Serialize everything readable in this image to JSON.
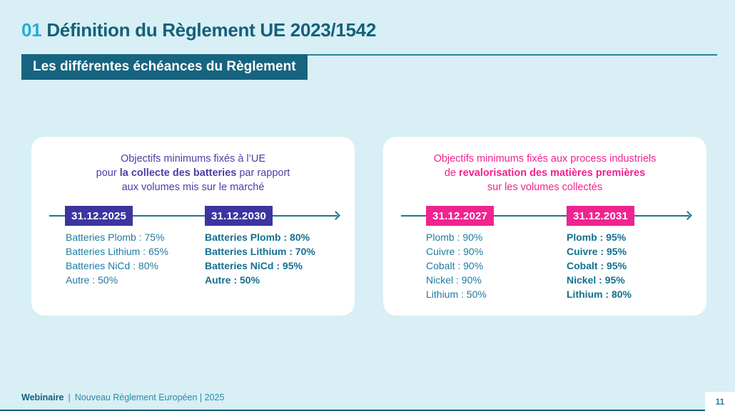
{
  "slide": {
    "title": {
      "number": "01",
      "text": "Définition du Règlement UE 2023/1542"
    },
    "banner": "Les différentes échéances du Règlement",
    "footer": {
      "brand": "Webinaire",
      "separator": "|",
      "text": "Nouveau Règlement Européen | 2025",
      "page_number": "11"
    },
    "colors": {
      "background": "#d7eff5",
      "title_number_cyan": "#2aaad6",
      "title_dark_teal": "#15607b",
      "banner_teal": "#176480",
      "indigo_accent": "#3c35a0",
      "purple_heading": "#4b3fa6",
      "pink_accent": "#f0238f",
      "timeline_teal": "#1b7590",
      "list_teal": "#1d7ba0",
      "card_background": "#ffffff"
    }
  },
  "cards": [
    {
      "heading": {
        "line1": "Objectifs minimums fixés à l’UE",
        "line2_pre": "pour ",
        "line2_bold": "la collecte des batteries",
        "line2_post": " par rapport",
        "line3": "aux volumes mis sur le marché"
      },
      "milestones": [
        {
          "date": "31.12.2025",
          "items": [
            "Batteries Plomb : 75%",
            "Batteries Lithium : 65%",
            "Batteries NiCd : 80%",
            "Autre : 50%"
          ]
        },
        {
          "date": "31.12.2030",
          "items": [
            "Batteries Plomb : 80%",
            "Batteries Lithium : 70%",
            "Batteries NiCd : 95%",
            "Autre : 50%"
          ]
        }
      ]
    },
    {
      "heading": {
        "line1": "Objectifs minimums fixés aux process industriels",
        "line2_pre": "de ",
        "line2_bold": "revalorisation des matières premières",
        "line2_post": "",
        "line3": "sur les volumes collectés"
      },
      "milestones": [
        {
          "date": "31.12.2027",
          "items": [
            "Plomb : 90%",
            "Cuivre : 90%",
            "Cobalt : 90%",
            "Nickel : 90%",
            "Lithium : 50%"
          ]
        },
        {
          "date": "31.12.2031",
          "items": [
            "Plomb : 95%",
            "Cuivre : 95%",
            "Cobalt : 95%",
            "Nickel : 95%",
            "Lithium : 80%"
          ]
        }
      ]
    }
  ]
}
